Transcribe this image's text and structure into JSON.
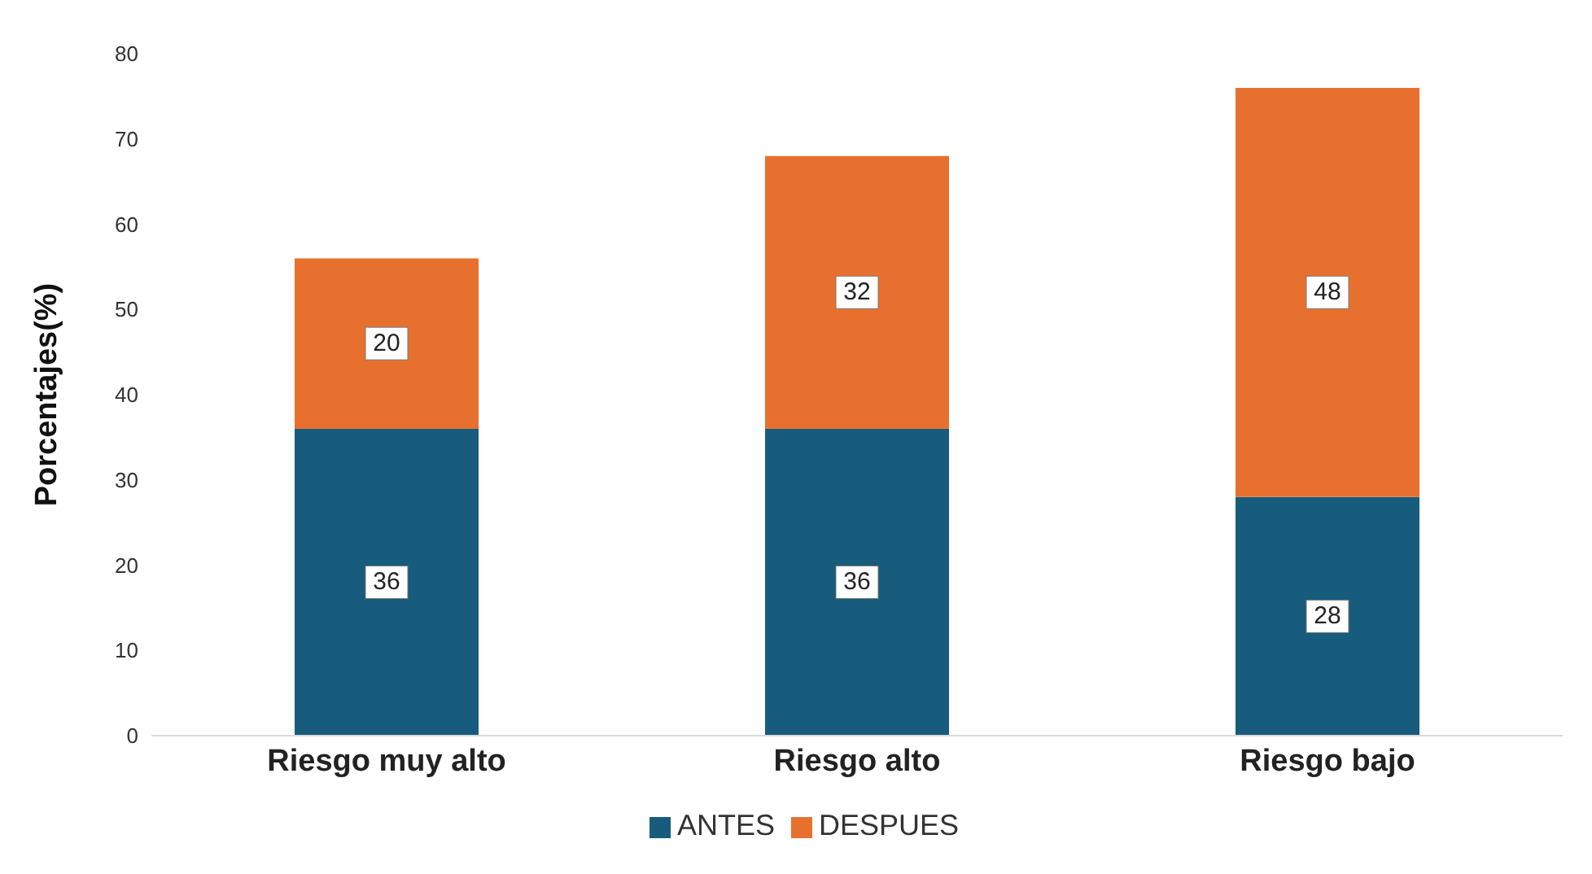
{
  "chart_data": {
    "type": "bar",
    "stacked": true,
    "ylabel": "Porcentajes(%)",
    "categories": [
      "Riesgo muy alto",
      "Riesgo alto",
      "Riesgo bajo"
    ],
    "series": [
      {
        "name": "ANTES",
        "color": "#175b7d",
        "values": [
          36,
          36,
          28
        ]
      },
      {
        "name": "DESPUES",
        "color": "#e8702f",
        "values": [
          20,
          32,
          48
        ]
      }
    ],
    "ylim": [
      0,
      80
    ],
    "yticks": [
      0,
      10,
      20,
      30,
      40,
      50,
      60,
      70,
      80
    ],
    "grid": false,
    "legend": "bottom",
    "data_labels": true
  }
}
